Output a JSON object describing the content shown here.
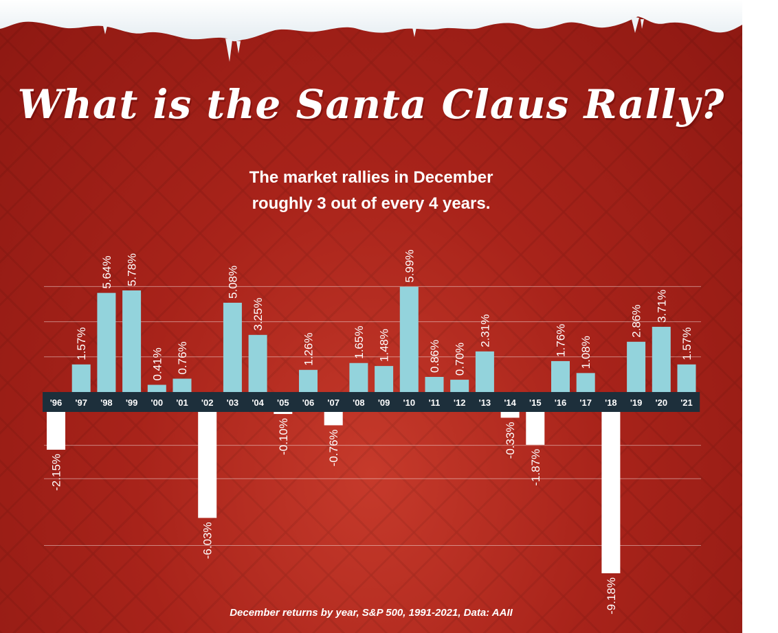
{
  "title": "What is the Santa Claus Rally?",
  "subtitle_lines": [
    "The market rallies in December",
    "roughly 3 out of every 4 years."
  ],
  "caption": "December returns by year, S&P 500, 1991-2021, Data: AAII",
  "colors": {
    "background": "#a8231a",
    "positive_bar": "#93d3dc",
    "negative_bar": "#ffffff",
    "axis_band": "#1d2f3b",
    "text": "#ffffff"
  },
  "chart_data": {
    "type": "bar",
    "title": "",
    "xlabel": "",
    "ylabel": "",
    "categories": [
      "'96",
      "'97",
      "'98",
      "'99",
      "'00",
      "'01",
      "'02",
      "'03",
      "'04",
      "'05",
      "'06",
      "'07",
      "'08",
      "'09",
      "'10",
      "'11",
      "'12",
      "'13",
      "'14",
      "'15",
      "'16",
      "'17",
      "'18",
      "'19",
      "'20",
      "'21"
    ],
    "values": [
      -2.15,
      1.57,
      5.64,
      5.78,
      0.41,
      0.76,
      -6.03,
      5.08,
      3.25,
      -0.1,
      1.26,
      -0.76,
      1.65,
      1.48,
      5.99,
      0.86,
      0.7,
      2.31,
      -0.33,
      -1.87,
      1.76,
      1.08,
      -9.18,
      2.86,
      3.71,
      1.57
    ],
    "labels": [
      "-2.15%",
      "1.57%",
      "5.64%",
      "5.78%",
      "0.41%",
      "0.76%",
      "-6.03%",
      "5.08%",
      "3.25%",
      "-0.10%",
      "1.26%",
      "-0.76%",
      "1.65%",
      "1.48%",
      "5.99%",
      "0.86%",
      "0.70%",
      "2.31%",
      "-0.33%",
      "-1.87%",
      "1.76%",
      "1.08%",
      "-9.18%",
      "2.86%",
      "3.71%",
      "1.57%"
    ],
    "ylim": [
      -9.18,
      5.99
    ],
    "grid": true,
    "legend": "none"
  }
}
